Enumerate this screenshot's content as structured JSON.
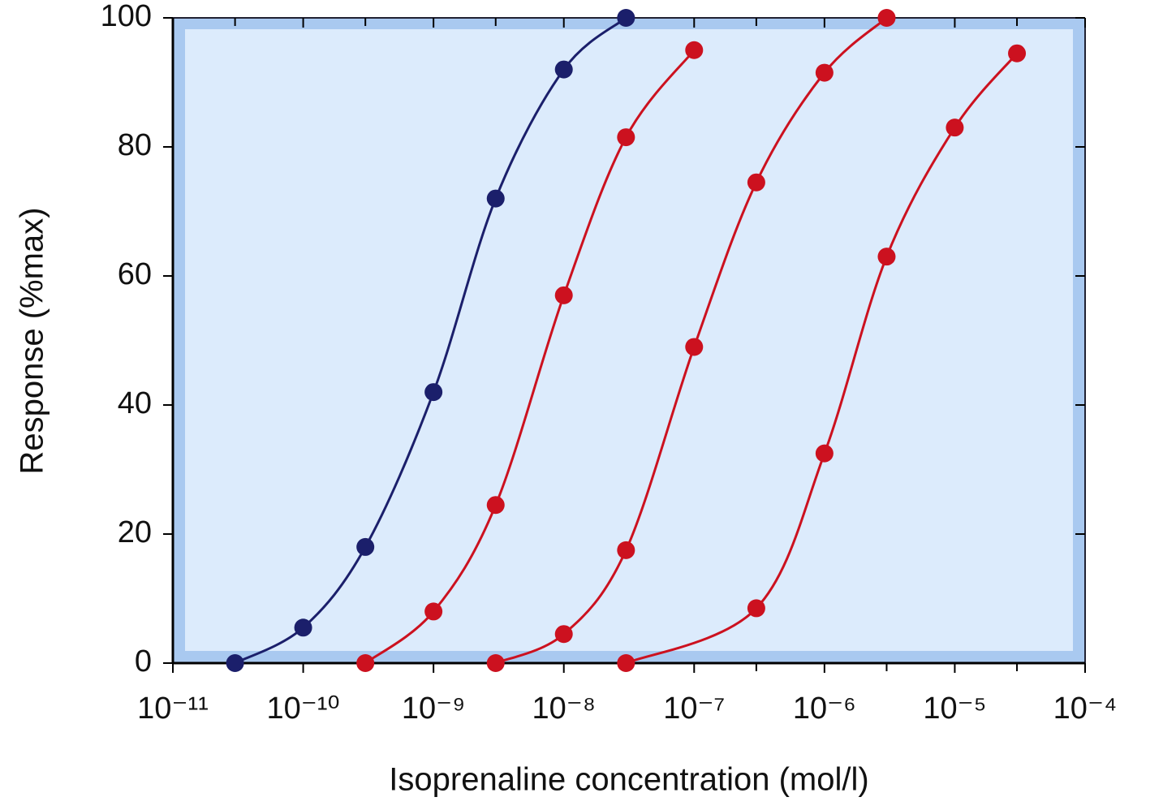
{
  "chart_data": {
    "type": "line",
    "x_label": "Isoprenaline concentration (mol/l)",
    "y_label": "Response (%max)",
    "xlim": [
      1e-11,
      0.0001
    ],
    "log_x": true,
    "xticks": [
      {
        "value": 1e-11,
        "label": "10⁻¹¹"
      },
      {
        "value": 1e-10,
        "label": "10⁻¹⁰"
      },
      {
        "value": 1e-09,
        "label": "10⁻⁹"
      },
      {
        "value": 1e-08,
        "label": "10⁻⁸"
      },
      {
        "value": 1e-07,
        "label": "10⁻⁷"
      },
      {
        "value": 1e-06,
        "label": "10⁻⁶"
      },
      {
        "value": 1e-05,
        "label": "10⁻⁵"
      },
      {
        "value": 0.0001,
        "label": "10⁻⁴"
      }
    ],
    "xminorticks": [
      3e-11,
      3e-10,
      3e-09,
      3e-08,
      3e-07,
      3e-06,
      3e-05
    ],
    "ylim": [
      0,
      100
    ],
    "yticks": [
      0,
      20,
      40,
      60,
      80,
      100
    ],
    "series": [
      {
        "color": "#1b1f6b",
        "x": [
          3e-11,
          1e-10,
          3e-10,
          1e-09,
          3e-09,
          1e-08,
          3e-08
        ],
        "values": [
          0,
          5.5,
          18,
          42,
          72,
          92,
          100
        ]
      },
      {
        "color": "#cc111f",
        "x": [
          3e-10,
          1e-09,
          3e-09,
          1e-08,
          3e-08,
          1e-07
        ],
        "values": [
          0,
          8,
          24.5,
          57,
          81.5,
          95
        ]
      },
      {
        "color": "#cc111f",
        "x": [
          3e-09,
          1e-08,
          3e-08,
          1e-07,
          3e-07,
          1e-06,
          3e-06
        ],
        "values": [
          0,
          4.5,
          17.5,
          49,
          74.5,
          91.5,
          100
        ]
      },
      {
        "color": "#cc111f",
        "x": [
          3e-08,
          3e-07,
          1e-06,
          3e-06,
          1e-05,
          3e-05
        ],
        "values": [
          0,
          8.5,
          32.5,
          63,
          83,
          94.5
        ]
      }
    ]
  }
}
